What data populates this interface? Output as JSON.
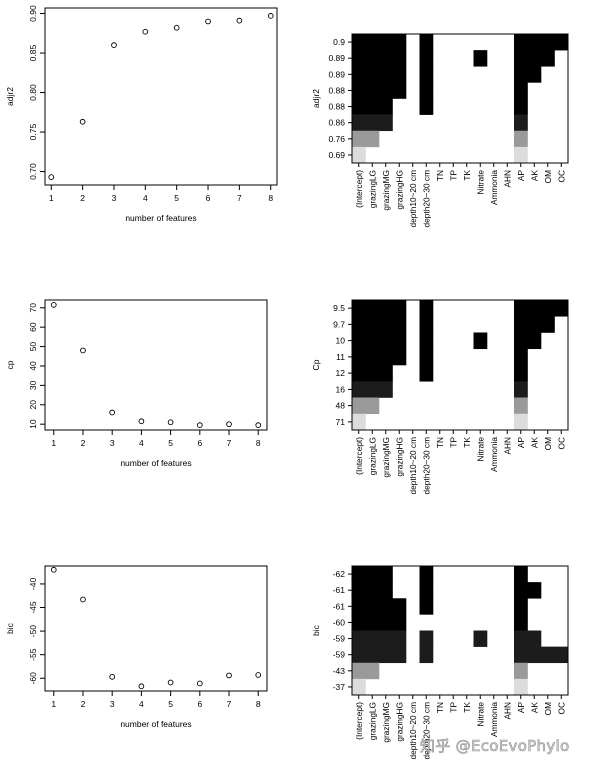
{
  "chart_data": [
    {
      "type": "scatter",
      "xlabel": "number of features",
      "ylabel": "adjr2",
      "x": [
        1,
        2,
        3,
        4,
        5,
        6,
        7,
        8
      ],
      "y": [
        0.693,
        0.763,
        0.86,
        0.877,
        0.882,
        0.89,
        0.891,
        0.897
      ],
      "xlim": [
        0.8,
        8.2
      ],
      "ylim": [
        0.683,
        0.907
      ],
      "xticks": [
        "1",
        "2",
        "3",
        "4",
        "5",
        "6",
        "7",
        "8"
      ],
      "yticks": [
        {
          "v": 0.7,
          "label": "0.70"
        },
        {
          "v": 0.75,
          "label": "0.75"
        },
        {
          "v": 0.8,
          "label": "0.80"
        },
        {
          "v": 0.85,
          "label": "0.85"
        },
        {
          "v": 0.9,
          "label": "0.90"
        }
      ]
    },
    {
      "type": "heatmap",
      "ylabel": "adjr2",
      "columns": [
        "(Intercept)",
        "grazingLG",
        "grazingMG",
        "grazingHG",
        "depth10~20 cm",
        "depth20~30 cm",
        "TN",
        "TP",
        "TK",
        "Nitrate",
        "Ammonia",
        "AHN",
        "AP",
        "AK",
        "OM",
        "OC"
      ],
      "rows": [
        {
          "label": "0.9",
          "shade": "#000000",
          "cells": [
            1,
            1,
            1,
            1,
            0,
            1,
            0,
            0,
            0,
            0,
            0,
            0,
            1,
            1,
            1,
            1
          ]
        },
        {
          "label": "0.89",
          "shade": "#000000",
          "cells": [
            1,
            1,
            1,
            1,
            0,
            1,
            0,
            0,
            0,
            1,
            0,
            0,
            1,
            1,
            1,
            0
          ]
        },
        {
          "label": "0.89",
          "shade": "#000000",
          "cells": [
            1,
            1,
            1,
            1,
            0,
            1,
            0,
            0,
            0,
            0,
            0,
            0,
            1,
            1,
            0,
            0
          ]
        },
        {
          "label": "0.88",
          "shade": "#000000",
          "cells": [
            1,
            1,
            1,
            1,
            0,
            1,
            0,
            0,
            0,
            0,
            0,
            0,
            1,
            0,
            0,
            0
          ]
        },
        {
          "label": "0.88",
          "shade": "#000000",
          "cells": [
            1,
            1,
            1,
            0,
            0,
            1,
            0,
            0,
            0,
            0,
            0,
            0,
            1,
            0,
            0,
            0
          ]
        },
        {
          "label": "0.86",
          "shade": "#1c1c1c",
          "cells": [
            1,
            1,
            1,
            0,
            0,
            0,
            0,
            0,
            0,
            0,
            0,
            0,
            1,
            0,
            0,
            0
          ]
        },
        {
          "label": "0.76",
          "shade": "#9a9a9a",
          "cells": [
            1,
            1,
            0,
            0,
            0,
            0,
            0,
            0,
            0,
            0,
            0,
            0,
            1,
            0,
            0,
            0
          ]
        },
        {
          "label": "0.69",
          "shade": "#dcdcdc",
          "cells": [
            1,
            0,
            0,
            0,
            0,
            0,
            0,
            0,
            0,
            0,
            0,
            0,
            1,
            0,
            0,
            0
          ]
        }
      ]
    },
    {
      "type": "scatter",
      "xlabel": "number of features",
      "ylabel": "cp",
      "x": [
        1,
        2,
        3,
        4,
        5,
        6,
        7,
        8
      ],
      "y": [
        71.5,
        48.0,
        16.0,
        11.5,
        11.0,
        9.5,
        10.0,
        9.5
      ],
      "xlim": [
        0.7,
        8.3
      ],
      "ylim": [
        7.0,
        74.0
      ],
      "xticks": [
        "1",
        "2",
        "3",
        "4",
        "5",
        "6",
        "7",
        "8"
      ],
      "yticks": [
        {
          "v": 10,
          "label": "10"
        },
        {
          "v": 20,
          "label": "20"
        },
        {
          "v": 30,
          "label": "30"
        },
        {
          "v": 40,
          "label": "40"
        },
        {
          "v": 50,
          "label": "50"
        },
        {
          "v": 60,
          "label": "60"
        },
        {
          "v": 70,
          "label": "70"
        }
      ]
    },
    {
      "type": "heatmap",
      "ylabel": "Cp",
      "columns": [
        "(Intercept)",
        "grazingLG",
        "grazingMG",
        "grazingHG",
        "depth10~20 cm",
        "depth20~30 cm",
        "TN",
        "TP",
        "TK",
        "Nitrate",
        "Ammonia",
        "AHN",
        "AP",
        "AK",
        "OM",
        "OC"
      ],
      "rows": [
        {
          "label": "9.5",
          "shade": "#000000",
          "cells": [
            1,
            1,
            1,
            1,
            0,
            1,
            0,
            0,
            0,
            0,
            0,
            0,
            1,
            1,
            1,
            1
          ]
        },
        {
          "label": "9.7",
          "shade": "#000000",
          "cells": [
            1,
            1,
            1,
            1,
            0,
            1,
            0,
            0,
            0,
            0,
            0,
            0,
            1,
            1,
            1,
            0
          ]
        },
        {
          "label": "10",
          "shade": "#000000",
          "cells": [
            1,
            1,
            1,
            1,
            0,
            1,
            0,
            0,
            0,
            1,
            0,
            0,
            1,
            1,
            0,
            0
          ]
        },
        {
          "label": "11",
          "shade": "#000000",
          "cells": [
            1,
            1,
            1,
            1,
            0,
            1,
            0,
            0,
            0,
            0,
            0,
            0,
            1,
            0,
            0,
            0
          ]
        },
        {
          "label": "12",
          "shade": "#000000",
          "cells": [
            1,
            1,
            1,
            0,
            0,
            1,
            0,
            0,
            0,
            0,
            0,
            0,
            1,
            0,
            0,
            0
          ]
        },
        {
          "label": "16",
          "shade": "#1c1c1c",
          "cells": [
            1,
            1,
            1,
            0,
            0,
            0,
            0,
            0,
            0,
            0,
            0,
            0,
            1,
            0,
            0,
            0
          ]
        },
        {
          "label": "48",
          "shade": "#9a9a9a",
          "cells": [
            1,
            1,
            0,
            0,
            0,
            0,
            0,
            0,
            0,
            0,
            0,
            0,
            1,
            0,
            0,
            0
          ]
        },
        {
          "label": "71",
          "shade": "#dcdcdc",
          "cells": [
            1,
            0,
            0,
            0,
            0,
            0,
            0,
            0,
            0,
            0,
            0,
            0,
            1,
            0,
            0,
            0
          ]
        }
      ]
    },
    {
      "type": "scatter",
      "xlabel": "number of features",
      "ylabel": "bic",
      "x": [
        1,
        2,
        3,
        4,
        5,
        6,
        7,
        8
      ],
      "y": [
        -37.0,
        -43.3,
        -59.7,
        -61.7,
        -60.9,
        -61.1,
        -59.4,
        -59.3
      ],
      "xlim": [
        0.7,
        8.3
      ],
      "ylim": [
        -62.7,
        -36.2
      ],
      "xticks": [
        "1",
        "2",
        "3",
        "4",
        "5",
        "6",
        "7",
        "8"
      ],
      "yticks": [
        {
          "v": -40,
          "label": "-40"
        },
        {
          "v": -45,
          "label": "-45"
        },
        {
          "v": -50,
          "label": "-50"
        },
        {
          "v": -55,
          "label": "-55"
        },
        {
          "v": -60,
          "label": "-60"
        }
      ]
    },
    {
      "type": "heatmap",
      "ylabel": "bic",
      "columns": [
        "(Intercept)",
        "grazingLG",
        "grazingMG",
        "grazingHG",
        "depth10~20 cm",
        "depth20~30 cm",
        "TN",
        "TP",
        "TK",
        "Nitrate",
        "Ammonia",
        "AHN",
        "AP",
        "AK",
        "OM",
        "OC"
      ],
      "rows": [
        {
          "label": "-62",
          "shade": "#000000",
          "cells": [
            1,
            1,
            1,
            0,
            0,
            1,
            0,
            0,
            0,
            0,
            0,
            0,
            1,
            0,
            0,
            0
          ]
        },
        {
          "label": "-61",
          "shade": "#000000",
          "cells": [
            1,
            1,
            1,
            0,
            0,
            1,
            0,
            0,
            0,
            0,
            0,
            0,
            1,
            1,
            0,
            0
          ]
        },
        {
          "label": "-61",
          "shade": "#000000",
          "cells": [
            1,
            1,
            1,
            1,
            0,
            1,
            0,
            0,
            0,
            0,
            0,
            0,
            1,
            0,
            0,
            0
          ]
        },
        {
          "label": "-60",
          "shade": "#000000",
          "cells": [
            1,
            1,
            1,
            1,
            0,
            0,
            0,
            0,
            0,
            0,
            0,
            0,
            1,
            0,
            0,
            0
          ]
        },
        {
          "label": "-59",
          "shade": "#1c1c1c",
          "cells": [
            1,
            1,
            1,
            1,
            0,
            1,
            0,
            0,
            0,
            1,
            0,
            0,
            1,
            1,
            0,
            0
          ]
        },
        {
          "label": "-59",
          "shade": "#1c1c1c",
          "cells": [
            1,
            1,
            1,
            1,
            0,
            1,
            0,
            0,
            0,
            0,
            0,
            0,
            1,
            1,
            1,
            1
          ]
        },
        {
          "label": "-43",
          "shade": "#9a9a9a",
          "cells": [
            1,
            1,
            0,
            0,
            0,
            0,
            0,
            0,
            0,
            0,
            0,
            0,
            1,
            0,
            0,
            0
          ]
        },
        {
          "label": "-37",
          "shade": "#dcdcdc",
          "cells": [
            1,
            0,
            0,
            0,
            0,
            0,
            0,
            0,
            0,
            0,
            0,
            0,
            1,
            0,
            0,
            0
          ]
        }
      ]
    }
  ],
  "watermark": "知乎 @EcoEvoPhylo"
}
